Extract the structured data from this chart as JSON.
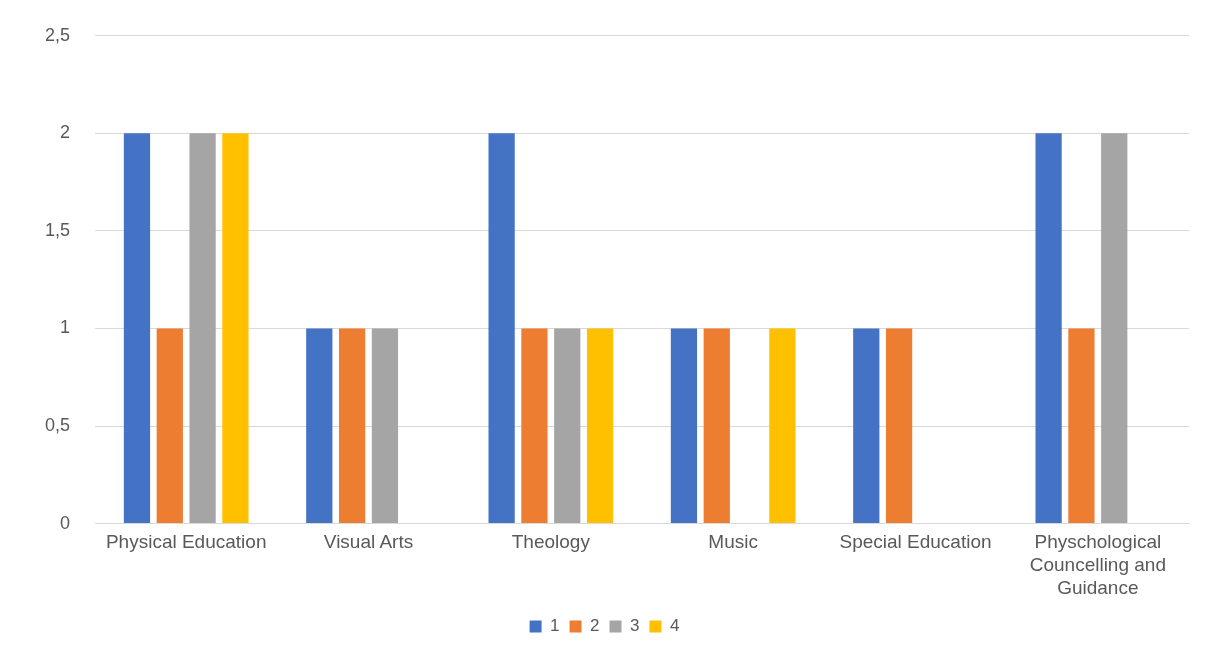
{
  "chart_data": {
    "type": "bar",
    "categories": [
      "Physical Education",
      "Visual Arts",
      "Theology",
      "Music",
      "Special Education",
      "Physchological Councelling and Guidance"
    ],
    "series": [
      {
        "name": "1",
        "color": "#4472c4",
        "values": [
          2,
          1,
          2,
          1,
          1,
          2
        ]
      },
      {
        "name": "2",
        "color": "#ed7d31",
        "values": [
          1,
          1,
          1,
          1,
          1,
          1
        ]
      },
      {
        "name": "3",
        "color": "#a5a5a5",
        "values": [
          2,
          1,
          1,
          0,
          0,
          2
        ]
      },
      {
        "name": "4",
        "color": "#ffc000",
        "values": [
          2,
          0,
          1,
          1,
          0,
          0
        ]
      }
    ],
    "ylim": [
      0,
      2.5
    ],
    "yticks": [
      0,
      {
        "value": 0.5,
        "label": "0,5"
      },
      1,
      {
        "value": 1.5,
        "label": "1,5"
      },
      2,
      {
        "value": 2.5,
        "label": "2,5"
      }
    ],
    "grid": "y",
    "legend": "bottom"
  }
}
